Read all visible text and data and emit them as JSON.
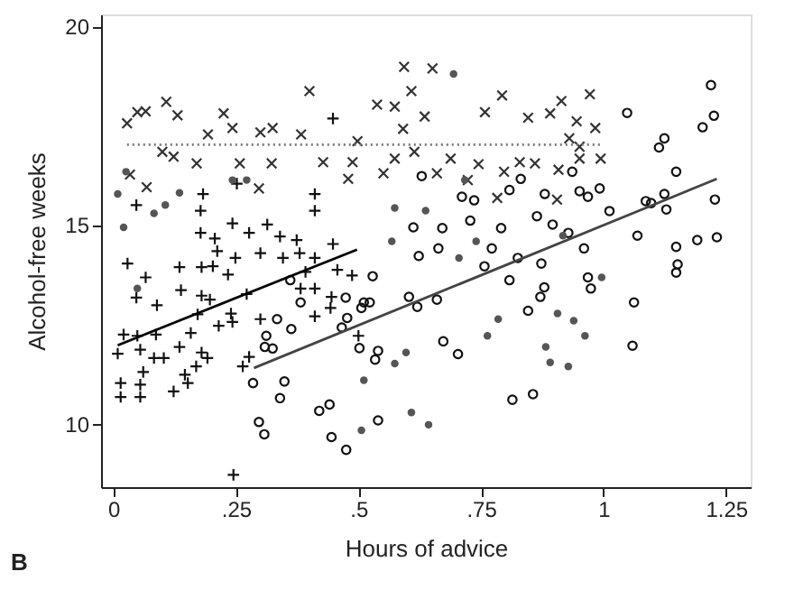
{
  "chart_data": {
    "type": "scatter",
    "xlabel": "Hours of advice",
    "ylabel": "Alcohol-free weeks",
    "annotations": [
      "B"
    ],
    "xlim": [
      -0.025,
      1.3
    ],
    "ylim": [
      8.4,
      20.3
    ],
    "xticks": [
      0,
      {
        "value": 0.25,
        "label": ".25"
      },
      {
        "value": 0.5,
        "label": ".5"
      },
      {
        "value": 0.75,
        "label": ".75"
      },
      1,
      1.25
    ],
    "yticks": [
      10,
      15,
      20
    ],
    "grid": false,
    "series": [
      {
        "marker": "x",
        "color": "#333333",
        "x": [
          0.028,
          0.049,
          0.066,
          0.108,
          0.131,
          0.225,
          0.243,
          0.1,
          0.123,
          0.17,
          0.258,
          0.323,
          0.034,
          0.068,
          0.297,
          0.193,
          0.3,
          0.325,
          0.4,
          0.383,
          0.593,
          0.651,
          0.608,
          0.538,
          0.574,
          0.635,
          0.758,
          0.793,
          0.591,
          0.498,
          0.488,
          0.428,
          0.574,
          0.614,
          0.688,
          0.745,
          0.479,
          0.551,
          0.66,
          0.723,
          0.783,
          0.797,
          0.829,
          0.972,
          0.914,
          0.891,
          0.846,
          0.945,
          0.983,
          0.93,
          0.951,
          0.951,
          0.994,
          0.86,
          0.908,
          0.905
        ],
        "values": [
          17.56,
          17.84,
          17.86,
          18.1,
          17.76,
          17.81,
          17.44,
          16.84,
          16.72,
          16.55,
          16.55,
          16.55,
          16.27,
          15.95,
          15.92,
          17.28,
          17.33,
          17.44,
          18.37,
          17.28,
          18.98,
          18.94,
          18.37,
          18.03,
          17.98,
          17.73,
          17.84,
          18.26,
          17.42,
          17.11,
          16.58,
          16.58,
          16.67,
          16.84,
          16.67,
          16.53,
          16.16,
          16.3,
          16.3,
          16.13,
          15.68,
          16.34,
          16.58,
          18.29,
          18.12,
          17.81,
          17.7,
          17.61,
          17.44,
          17.18,
          16.97,
          16.67,
          16.67,
          16.55,
          16.39,
          15.64
        ]
      },
      {
        "marker": "cross",
        "color": "#111111",
        "x": [
          0.029,
          0.066,
          0.047,
          0.089,
          0.135,
          0.138,
          0.18,
          0.203,
          0.212,
          0.178,
          0.207,
          0.243,
          0.277,
          0.314,
          0.183,
          0.178,
          0.252,
          0.249,
          0.234,
          0.3,
          0.34,
          0.374,
          0.346,
          0.38,
          0.272,
          0.172,
          0.18,
          0.197,
          0.24,
          0.243,
          0.3,
          0.215,
          0.021,
          0.049,
          0.087,
          0.158,
          0.055,
          0.083,
          0.103,
          0.135,
          0.18,
          0.192,
          0.009,
          0.061,
          0.015,
          0.055,
          0.015,
          0.055,
          0.123,
          0.146,
          0.169,
          0.152,
          0.264,
          0.277,
          0.245,
          0.382,
          0.392,
          0.047,
          0.448,
          0.411,
          0.411,
          0.448,
          0.411,
          0.457,
          0.487,
          0.411,
          0.445,
          0.443,
          0.5,
          0.411
        ],
        "values": [
          14.03,
          13.68,
          13.17,
          12.98,
          13.94,
          13.36,
          13.94,
          13.96,
          14.34,
          14.8,
          14.66,
          15.04,
          14.8,
          15.01,
          15.78,
          15.36,
          16.04,
          14.17,
          13.75,
          14.29,
          14.71,
          14.62,
          14.17,
          14.29,
          13.26,
          12.75,
          13.22,
          13.12,
          12.77,
          12.56,
          12.63,
          12.46,
          12.24,
          12.21,
          12.24,
          12.28,
          11.86,
          11.65,
          11.65,
          11.93,
          11.79,
          11.65,
          11.76,
          11.3,
          11.02,
          10.98,
          10.67,
          10.67,
          10.81,
          11.23,
          11.44,
          11.02,
          11.44,
          11.68,
          8.71,
          13.4,
          13.82,
          15.5,
          17.68,
          15.78,
          15.36,
          14.52,
          14.17,
          13.87,
          13.73,
          13.4,
          13.19,
          12.91,
          12.21,
          12.7
        ]
      },
      {
        "marker": "circle",
        "color": "#111111",
        "x": [
          0.361,
          0.382,
          0.334,
          0.363,
          0.312,
          0.309,
          0.325,
          0.285,
          0.349,
          0.34,
          0.297,
          0.308,
          0.474,
          0.529,
          0.511,
          0.523,
          0.506,
          0.477,
          0.466,
          0.502,
          0.54,
          0.534,
          0.42,
          0.441,
          0.445,
          0.475,
          0.54,
          0.603,
          0.62,
          0.66,
          0.673,
          0.703,
          0.612,
          0.623,
          0.663,
          0.671,
          0.629,
          0.711,
          0.736,
          0.728,
          0.772,
          0.757,
          0.791,
          0.808,
          0.831,
          0.808,
          0.825,
          0.814,
          1.219,
          1.225,
          1.048,
          1.202,
          1.124,
          1.113,
          1.148,
          0.936,
          0.88,
          0.951,
          0.968,
          0.992,
          1.124,
          1.086,
          1.097,
          1.128,
          1.227,
          1.012,
          0.864,
          0.896,
          0.928,
          1.069,
          0.96,
          1.148,
          1.191,
          1.231,
          1.151,
          1.148,
          0.873,
          0.968,
          0.974,
          0.879,
          0.871,
          0.846,
          1.062,
          1.059,
          0.856
        ],
        "values": [
          13.61,
          13.05,
          12.63,
          12.38,
          12.21,
          11.93,
          11.89,
          11.02,
          11.06,
          10.64,
          10.04,
          9.73,
          13.17,
          13.71,
          13.05,
          13.05,
          12.91,
          12.66,
          12.42,
          11.9,
          11.83,
          11.61,
          10.32,
          10.48,
          9.66,
          9.34,
          10.08,
          13.19,
          12.94,
          13.12,
          12.07,
          11.75,
          14.94,
          14.22,
          14.41,
          14.92,
          16.23,
          15.71,
          15.62,
          15.11,
          14.41,
          13.96,
          14.92,
          15.88,
          16.16,
          13.61,
          14.17,
          10.6,
          18.52,
          17.75,
          17.82,
          17.46,
          17.18,
          16.95,
          16.34,
          16.34,
          15.78,
          15.85,
          15.71,
          15.92,
          15.78,
          15.6,
          15.55,
          15.39,
          15.64,
          15.35,
          15.22,
          15.01,
          14.8,
          14.73,
          14.41,
          14.45,
          14.62,
          14.69,
          14.01,
          13.8,
          14.03,
          13.68,
          13.4,
          13.43,
          13.19,
          12.84,
          13.05,
          11.96,
          10.74
        ]
      },
      {
        "color": "#555555",
        "x": [
          0.009,
          0.021,
          0.049,
          0.135,
          0.083,
          0.106,
          0.243,
          0.272,
          0.026,
          0.574,
          0.637,
          0.568,
          0.705,
          0.74,
          0.574,
          0.608,
          0.643,
          0.597,
          0.763,
          0.785,
          0.694,
          0.717,
          0.506,
          0.511,
          0.882,
          0.891,
          0.928,
          0.962,
          0.906,
          0.996,
          0.939,
          0.917
        ],
        "values": [
          15.78,
          14.94,
          13.4,
          15.81,
          15.29,
          15.5,
          16.13,
          16.13,
          16.34,
          15.43,
          15.36,
          14.59,
          14.17,
          14.59,
          11.51,
          10.28,
          9.97,
          11.79,
          12.21,
          12.63,
          18.8,
          16.13,
          9.83,
          11.09,
          11.93,
          11.54,
          11.44,
          12.21,
          12.77,
          13.68,
          12.59,
          14.73
        ]
      },
      {
        "type": "line",
        "line_style": "dotted",
        "color": "#777777",
        "x": [
          0.028,
          0.997
        ],
        "values": [
          17.02,
          17.02
        ]
      },
      {
        "type": "line",
        "line_style": "solid",
        "color": "#000000",
        "x": [
          0.009,
          0.497
        ],
        "values": [
          11.97,
          14.38
        ]
      },
      {
        "type": "line",
        "line_style": "solid",
        "color": "#444444",
        "x": [
          0.287,
          1.231
        ],
        "values": [
          11.4,
          16.16
        ]
      }
    ]
  }
}
